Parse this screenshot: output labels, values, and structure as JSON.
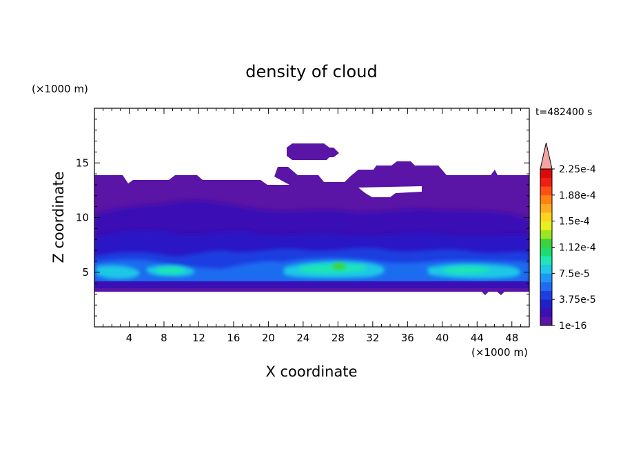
{
  "chart_data": {
    "type": "heatmap",
    "title": "density of cloud",
    "xlabel": "X coordinate",
    "ylabel": "Z coordinate",
    "x_unit_label": "(×1000 m)",
    "y_unit_label": "(×1000 m)",
    "time_label": "t=482400 s",
    "xlim": [
      0,
      50
    ],
    "ylim": [
      0,
      20
    ],
    "x_ticks": [
      4,
      8,
      12,
      16,
      20,
      24,
      28,
      32,
      36,
      40,
      44,
      48
    ],
    "y_ticks": [
      5,
      10,
      15
    ],
    "colorbar": {
      "levels": [
        "1e-16",
        "3.75e-5",
        "7.5e-5",
        "1.12e-4",
        "1.5e-4",
        "1.88e-4",
        "2.25e-4"
      ],
      "colors": [
        "#5a14a6",
        "#3a0fb4",
        "#2020c8",
        "#1f3ee0",
        "#1f6cf0",
        "#1f96f5",
        "#1fc8e6",
        "#1fe6b4",
        "#1fdc6e",
        "#3cd23c",
        "#9be61f",
        "#e6f01f",
        "#ffd21f",
        "#ffaa1f",
        "#ff8214",
        "#ff5014",
        "#f01e14",
        "#dc0a0a"
      ],
      "extend_color": "#f4a4a4"
    },
    "field": {
      "base_band_z": [
        3.5,
        4.1
      ],
      "core_band_z": [
        4.3,
        6.0
      ],
      "upper_layer_z": [
        6.0,
        13.7
      ],
      "max_density_z": 5.4,
      "upper_cloud_top_z": 16.5
    }
  }
}
